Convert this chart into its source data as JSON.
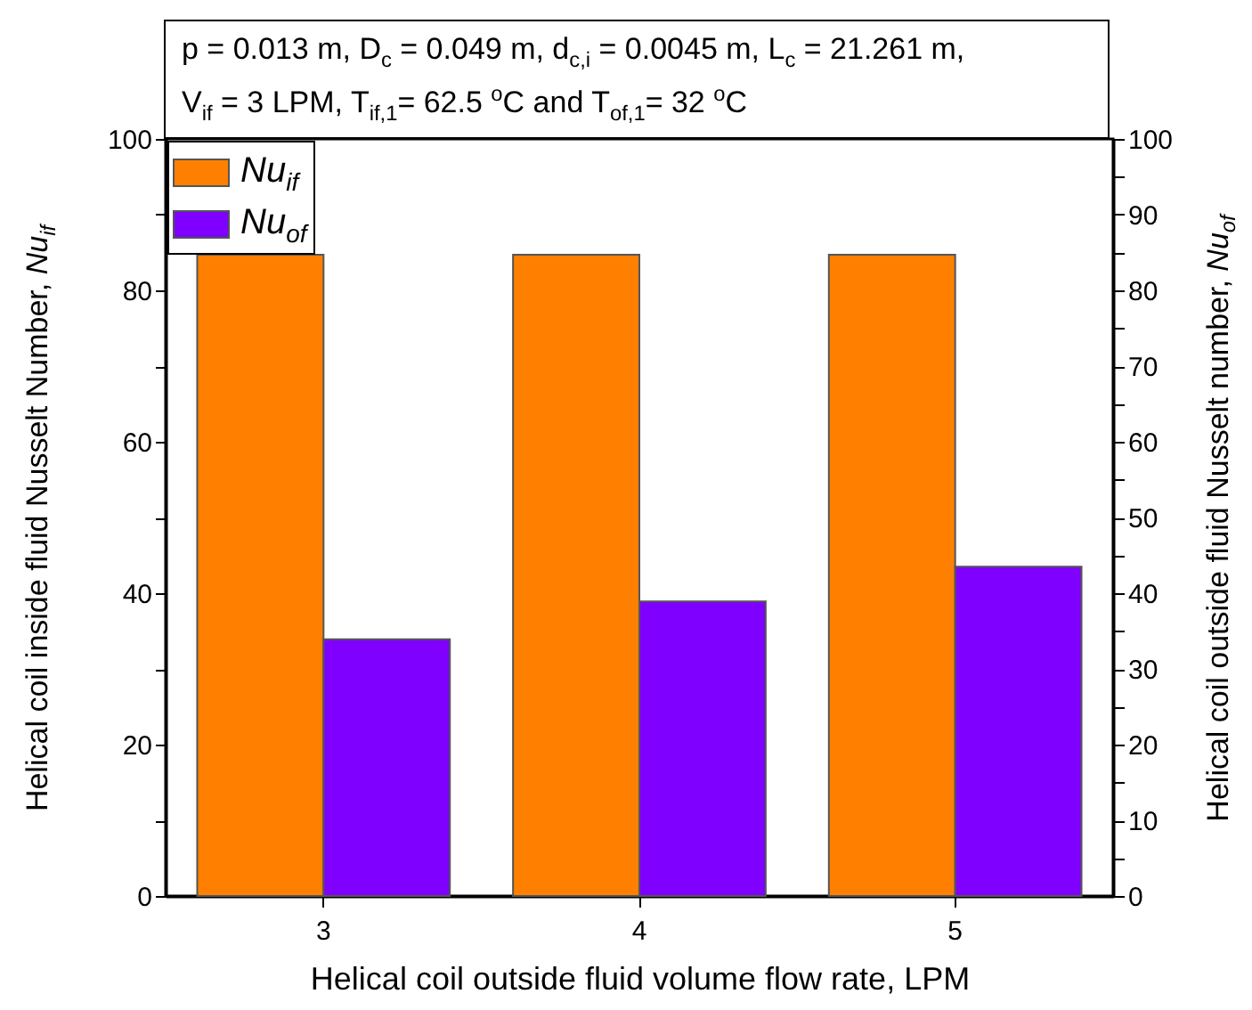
{
  "chart_data": {
    "type": "bar",
    "annotations": [
      "p = 0.013 m, D$_{c}$ = 0.049 m, d$_{c,i}$ = 0.0045 m, L$_{c}$ = 21.261 m,",
      "V$_{if}$ = 3 LPM, T$_{if,1}$= 62.5 $^{o}$C and T$_{of,1}$= 32 $^{o}$C"
    ],
    "xlabel": "Helical coil outside fluid volume flow rate, LPM",
    "ylabel": "Helical coil inside fluid Nusselt Number, Nu$_{if}$",
    "y2label": "Helical coil outside fluid Nusselt number, Nu$_{of}$",
    "categories": [
      "3",
      "4",
      "5"
    ],
    "series": [
      {
        "name": "Nu$_{if}$",
        "color": "#ff8000",
        "values": [
          84.7,
          84.7,
          84.7
        ]
      },
      {
        "name": "Nu$_{of}$",
        "color": "#8000ff",
        "axis": "y2",
        "values": [
          33.9,
          38.9,
          43.5
        ]
      }
    ],
    "ylim": [
      0,
      100
    ],
    "yticks": [
      0,
      {
        "value": 10,
        "label": null
      },
      20,
      {
        "value": 30,
        "label": null
      },
      40,
      {
        "value": 50,
        "label": null
      },
      60,
      {
        "value": 70,
        "label": null
      },
      80,
      {
        "value": 90,
        "label": null
      },
      100
    ],
    "y2lim": [
      0,
      100
    ],
    "y2ticks": [
      0,
      {
        "value": 5,
        "label": null
      },
      10,
      {
        "value": 15,
        "label": null
      },
      20,
      {
        "value": 25,
        "label": null
      },
      30,
      {
        "value": 35,
        "label": null
      },
      40,
      {
        "value": 45,
        "label": null
      },
      50,
      {
        "value": 55,
        "label": null
      },
      60,
      {
        "value": 65,
        "label": null
      },
      70,
      {
        "value": 75,
        "label": null
      },
      80,
      {
        "value": 85,
        "label": null
      },
      90,
      {
        "value": 95,
        "label": null
      },
      100
    ],
    "grid": false,
    "legend": "top left"
  }
}
